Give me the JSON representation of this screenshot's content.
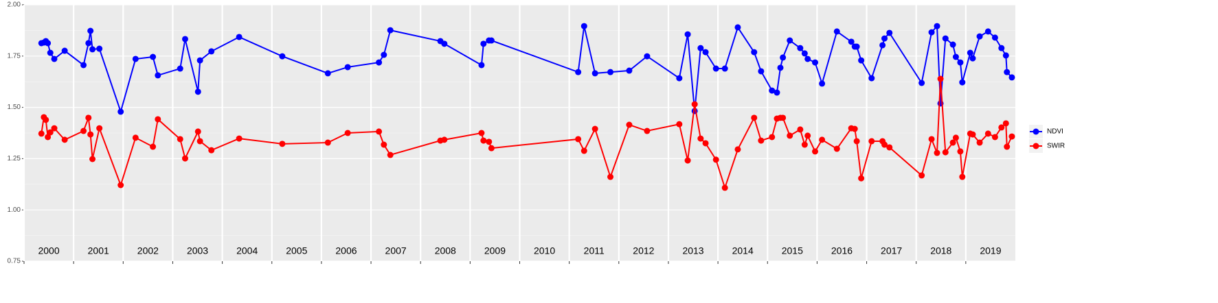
{
  "chart_data": {
    "type": "line",
    "x": [
      2000.35,
      2000.4,
      2000.44,
      2000.48,
      2000.53,
      2000.61,
      2000.82,
      2001.2,
      2001.3,
      2001.34,
      2001.38,
      2001.52,
      2001.95,
      2002.25,
      2002.6,
      2002.7,
      2003.15,
      2003.25,
      2003.51,
      2003.55,
      2003.78,
      2004.34,
      2005.21,
      2006.13,
      2006.53,
      2007.16,
      2007.26,
      2007.39,
      2008.4,
      2008.48,
      2009.23,
      2009.27,
      2009.38,
      2009.43,
      2011.18,
      2011.3,
      2011.52,
      2011.83,
      2012.21,
      2012.57,
      2013.22,
      2013.39,
      2013.53,
      2013.65,
      2013.75,
      2013.96,
      2014.14,
      2014.4,
      2014.73,
      2014.87,
      2015.09,
      2015.19,
      2015.26,
      2015.31,
      2015.45,
      2015.66,
      2015.75,
      2015.81,
      2015.96,
      2016.1,
      2016.4,
      2016.69,
      2016.76,
      2016.8,
      2016.89,
      2017.1,
      2017.32,
      2017.36,
      2017.46,
      2018.11,
      2018.31,
      2018.42,
      2018.49,
      2018.59,
      2018.74,
      2018.8,
      2018.89,
      2018.93,
      2019.09,
      2019.14,
      2019.28,
      2019.45,
      2019.59,
      2019.72,
      2019.81,
      2019.83,
      2019.93
    ],
    "series": [
      {
        "name": "NDVI",
        "color": "#0000ff",
        "values": [
          1.813,
          1.816,
          1.823,
          1.813,
          1.766,
          1.736,
          1.776,
          1.706,
          1.813,
          1.873,
          1.783,
          1.786,
          1.479,
          1.736,
          1.746,
          1.656,
          1.689,
          1.833,
          1.576,
          1.729,
          1.773,
          1.843,
          1.749,
          1.666,
          1.696,
          1.719,
          1.756,
          1.876,
          1.823,
          1.81,
          1.706,
          1.81,
          1.826,
          1.826,
          1.672,
          1.896,
          1.666,
          1.672,
          1.679,
          1.749,
          1.642,
          1.856,
          1.482,
          1.789,
          1.769,
          1.689,
          1.689,
          1.89,
          1.769,
          1.676,
          1.582,
          1.572,
          1.693,
          1.743,
          1.826,
          1.789,
          1.763,
          1.736,
          1.719,
          1.616,
          1.87,
          1.82,
          1.796,
          1.796,
          1.729,
          1.642,
          1.803,
          1.836,
          1.863,
          1.619,
          1.866,
          1.896,
          1.519,
          1.836,
          1.806,
          1.746,
          1.719,
          1.622,
          1.766,
          1.739,
          1.846,
          1.87,
          1.84,
          1.789,
          1.753,
          1.672,
          1.646
        ]
      },
      {
        "name": "SWIR",
        "color": "#ff0000",
        "values": [
          1.372,
          1.452,
          1.439,
          1.355,
          1.378,
          1.398,
          1.342,
          1.385,
          1.449,
          1.368,
          1.248,
          1.398,
          1.121,
          1.352,
          1.308,
          1.442,
          1.345,
          1.251,
          1.382,
          1.335,
          1.291,
          1.348,
          1.322,
          1.328,
          1.375,
          1.382,
          1.318,
          1.268,
          1.338,
          1.342,
          1.375,
          1.338,
          1.332,
          1.301,
          1.345,
          1.288,
          1.395,
          1.161,
          1.415,
          1.385,
          1.418,
          1.241,
          1.515,
          1.348,
          1.325,
          1.245,
          1.108,
          1.295,
          1.449,
          1.338,
          1.355,
          1.445,
          1.449,
          1.449,
          1.362,
          1.392,
          1.318,
          1.362,
          1.285,
          1.342,
          1.298,
          1.398,
          1.395,
          1.335,
          1.154,
          1.335,
          1.335,
          1.318,
          1.305,
          1.168,
          1.345,
          1.278,
          1.639,
          1.281,
          1.328,
          1.352,
          1.285,
          1.161,
          1.372,
          1.368,
          1.328,
          1.372,
          1.355,
          1.402,
          1.422,
          1.308,
          1.358
        ]
      }
    ],
    "xlim": [
      2000,
      2020
    ],
    "xticks": [
      2000,
      2001,
      2002,
      2003,
      2004,
      2005,
      2006,
      2007,
      2008,
      2009,
      2010,
      2011,
      2012,
      2013,
      2014,
      2015,
      2016,
      2017,
      2018,
      2019
    ],
    "ylim": [
      0.75,
      2
    ],
    "yticks": [
      {
        "value": 0.75,
        "label": "0.75"
      },
      {
        "value": 1,
        "label": "1.00"
      },
      {
        "value": 1.25,
        "label": "1.25"
      },
      {
        "value": 1.5,
        "label": "1.50"
      },
      {
        "value": 1.75,
        "label": "1.75"
      },
      {
        "value": 2,
        "label": "2.00"
      }
    ],
    "grid": true
  }
}
